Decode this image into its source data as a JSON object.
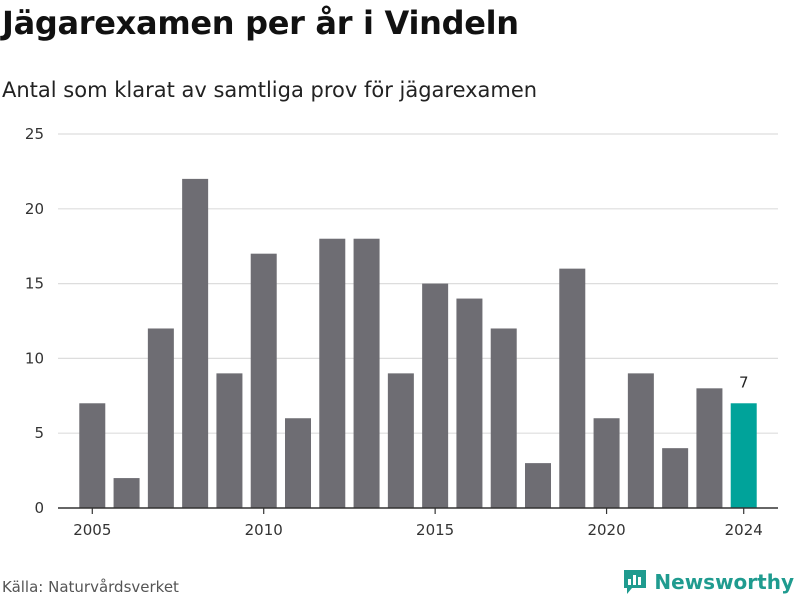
{
  "title": "Jägarexamen per år i Vindeln",
  "subtitle": "Antal som klarat av samtliga prov för jägarexamen",
  "source": "Källa: Naturvårdsverket",
  "brand": {
    "name": "Newsworthy",
    "icon": "bar-chart-logo-icon",
    "color": "#1f9b8f"
  },
  "colors": {
    "bar": "#6e6d73",
    "highlight": "#00a39a",
    "grid": "#dddddd",
    "axis": "#333333"
  },
  "chart_data": {
    "type": "bar",
    "title": "Jägarexamen per år i Vindeln",
    "subtitle": "Antal som klarat av samtliga prov för jägarexamen",
    "x": [
      2005,
      2006,
      2007,
      2008,
      2009,
      2010,
      2011,
      2012,
      2013,
      2014,
      2015,
      2016,
      2017,
      2018,
      2019,
      2020,
      2021,
      2022,
      2023,
      2024
    ],
    "values": [
      7,
      2,
      12,
      22,
      9,
      17,
      6,
      18,
      18,
      9,
      15,
      14,
      12,
      3,
      16,
      6,
      9,
      4,
      8,
      7
    ],
    "highlight_index": 19,
    "data_labels": [
      {
        "x": 2024,
        "text": "7"
      }
    ],
    "x_ticks": [
      2005,
      2010,
      2015,
      2020,
      2024
    ],
    "y_ticks": [
      0,
      5,
      10,
      15,
      20,
      25
    ],
    "ylim": [
      0,
      25
    ],
    "grid": true,
    "xlabel": "",
    "ylabel": ""
  }
}
